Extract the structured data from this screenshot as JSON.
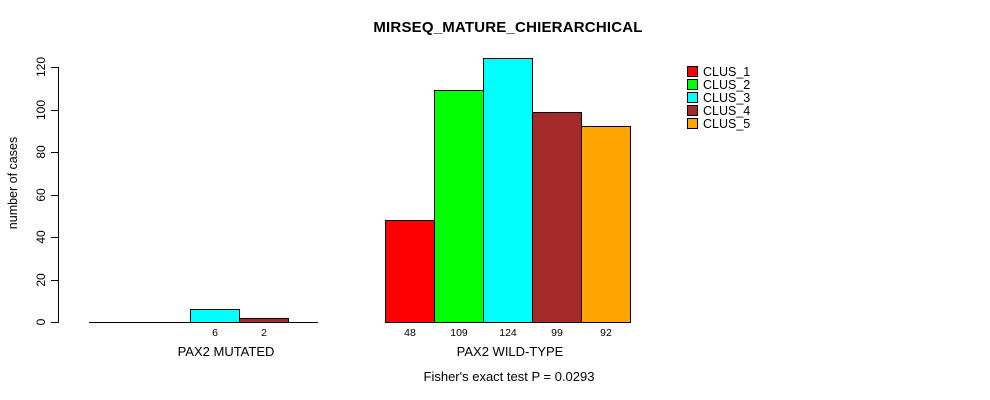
{
  "chart_data": {
    "type": "bar",
    "title": "MIRSEQ_MATURE_CHIERARCHICAL",
    "ylabel": "number of cases",
    "xlabel": "",
    "ylim": [
      0,
      120
    ],
    "yticks": [
      0,
      20,
      40,
      60,
      80,
      100,
      120
    ],
    "grid": false,
    "legend_position": "top-right",
    "categories": [
      "PAX2 MUTATED",
      "PAX2 WILD-TYPE"
    ],
    "series": [
      {
        "name": "CLUS_1",
        "color": "#FF0000",
        "values": [
          0,
          48
        ]
      },
      {
        "name": "CLUS_2",
        "color": "#00FF00",
        "values": [
          0,
          109
        ]
      },
      {
        "name": "CLUS_3",
        "color": "#00FFFF",
        "values": [
          6,
          124
        ]
      },
      {
        "name": "CLUS_4",
        "color": "#A52A2A",
        "values": [
          2,
          99
        ]
      },
      {
        "name": "CLUS_5",
        "color": "#FFA500",
        "values": [
          0,
          92
        ]
      }
    ],
    "bar_border_color": "#000000",
    "bar_value_labels_shown": true,
    "footnote": "Fisher's exact test P = 0.0293"
  }
}
